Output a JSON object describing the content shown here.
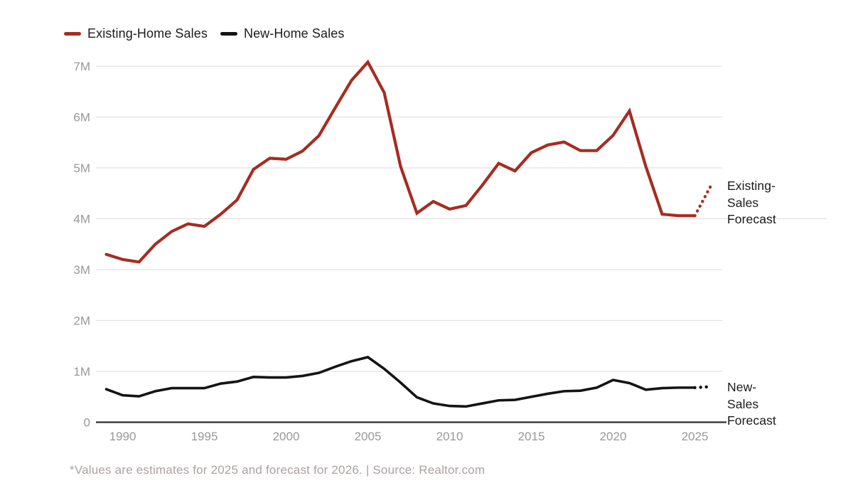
{
  "legend": {
    "items": [
      {
        "label": "Existing-Home Sales",
        "color": "#a62c21"
      },
      {
        "label": "New-Home Sales",
        "color": "#141414"
      }
    ]
  },
  "annotations": {
    "existing_forecast": {
      "lines": [
        "Existing-",
        "Sales",
        "Forecast"
      ]
    },
    "new_forecast": {
      "lines": [
        "New-",
        "Sales",
        "Forecast"
      ]
    }
  },
  "footer": {
    "note": "*Values are estimates for 2025 and forecast for 2026. | Source: Realtor.com"
  },
  "colors": {
    "existing_red": "#a62c21",
    "new_black": "#141414",
    "gridline": "#e2e2e2",
    "zero_axis": "#2d2d2d",
    "tick_text": "#989898",
    "footnote_text": "#a9a3a1"
  },
  "chart_data": {
    "type": "line",
    "title": "",
    "xlabel": "",
    "ylabel": "",
    "grid": "horizontal",
    "legend_position": "top-left",
    "ylim": [
      0,
      7.4
    ],
    "x": [
      1989,
      1990,
      1991,
      1992,
      1993,
      1994,
      1995,
      1996,
      1997,
      1998,
      1999,
      2000,
      2001,
      2002,
      2003,
      2004,
      2005,
      2006,
      2007,
      2008,
      2009,
      2010,
      2011,
      2012,
      2013,
      2014,
      2015,
      2016,
      2017,
      2018,
      2019,
      2020,
      2021,
      2022,
      2023,
      2024,
      2025
    ],
    "series": [
      {
        "name": "Existing-Home Sales",
        "unit": "millions",
        "color": "#a62c21",
        "values": [
          3.3,
          3.2,
          3.15,
          3.5,
          3.75,
          3.9,
          3.85,
          4.09,
          4.37,
          4.97,
          5.19,
          5.17,
          5.33,
          5.63,
          6.18,
          6.72,
          7.08,
          6.48,
          5.03,
          4.11,
          4.34,
          4.19,
          4.26,
          4.66,
          5.09,
          4.94,
          5.3,
          5.45,
          5.51,
          5.34,
          5.34,
          5.64,
          6.12,
          5.03,
          4.09,
          4.06,
          4.06
        ],
        "forecast_year": 2026,
        "forecast_value": 4.66
      },
      {
        "name": "New-Home Sales",
        "unit": "millions",
        "color": "#141414",
        "values": [
          0.65,
          0.53,
          0.51,
          0.61,
          0.67,
          0.67,
          0.67,
          0.76,
          0.8,
          0.89,
          0.88,
          0.88,
          0.91,
          0.97,
          1.09,
          1.2,
          1.28,
          1.05,
          0.78,
          0.49,
          0.37,
          0.32,
          0.31,
          0.37,
          0.43,
          0.44,
          0.5,
          0.56,
          0.61,
          0.62,
          0.68,
          0.83,
          0.77,
          0.64,
          0.67,
          0.68,
          0.68
        ],
        "forecast_year": 2026,
        "forecast_value": 0.7
      }
    ],
    "ylabel_ticks": [
      "0",
      "1M",
      "2M",
      "3M",
      "4M",
      "5M",
      "6M",
      "7M"
    ],
    "xlabel_ticks": [
      "1990",
      "1995",
      "2000",
      "2005",
      "2010",
      "2015",
      "2020",
      "2025"
    ],
    "footnote": "*Values are estimates for 2025 and forecast for 2026. | Source: Realtor.com"
  }
}
